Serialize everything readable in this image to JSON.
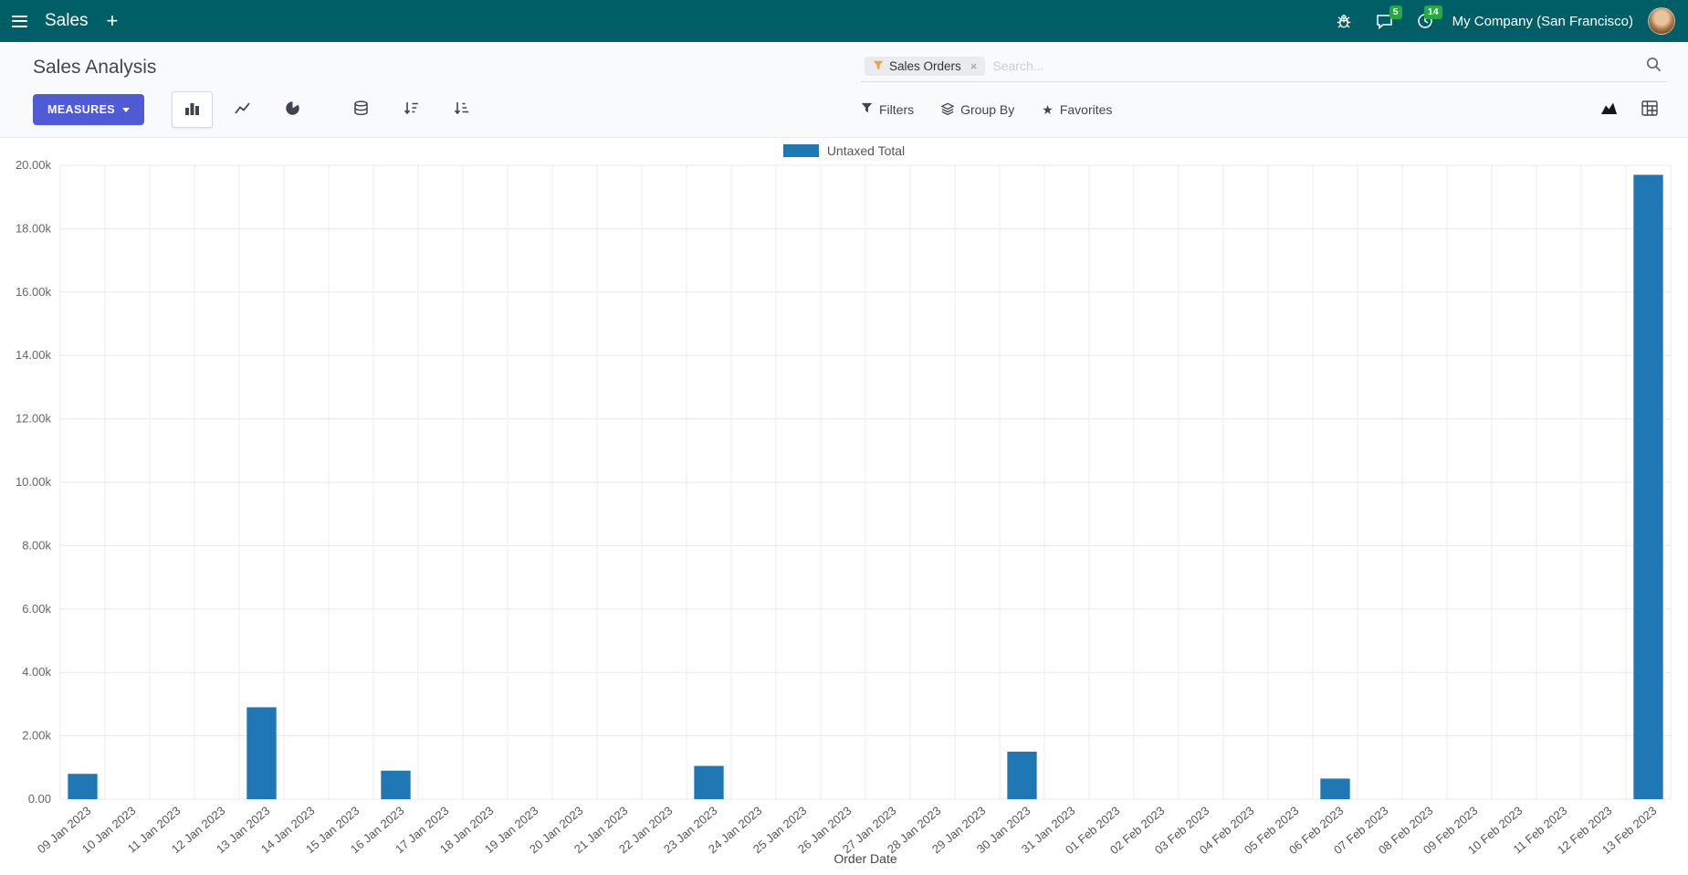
{
  "navbar": {
    "app_title": "Sales",
    "new_label": "+",
    "company": "My Company (San Francisco)",
    "messages_badge": "5",
    "activities_badge": "14"
  },
  "control_panel": {
    "title": "Sales Analysis",
    "measures_label": "MEASURES",
    "filters_label": "Filters",
    "group_by_label": "Group By",
    "favorites_label": "Favorites"
  },
  "search": {
    "facet_label": "Sales Orders",
    "remove_label": "×",
    "placeholder": "Search..."
  },
  "icons": {
    "star": "★"
  },
  "colors": {
    "navbar_bg": "#005E66",
    "primary": "#4F5BD5",
    "bar": "#1F77B4",
    "badge": "#28A745",
    "funnel": "#E8A33D"
  },
  "chart_data": {
    "type": "bar",
    "title": "Sales Analysis",
    "legend_position": "top",
    "grid": true,
    "xlabel": "Order Date",
    "ylabel": "",
    "ylim": [
      0,
      20000
    ],
    "y_tick_step": 2000,
    "y_tick_labels": [
      "0.00",
      "2.00k",
      "4.00k",
      "6.00k",
      "8.00k",
      "10.00k",
      "12.00k",
      "14.00k",
      "16.00k",
      "18.00k",
      "20.00k"
    ],
    "categories": [
      "09 Jan 2023",
      "10 Jan 2023",
      "11 Jan 2023",
      "12 Jan 2023",
      "13 Jan 2023",
      "14 Jan 2023",
      "15 Jan 2023",
      "16 Jan 2023",
      "17 Jan 2023",
      "18 Jan 2023",
      "19 Jan 2023",
      "20 Jan 2023",
      "21 Jan 2023",
      "22 Jan 2023",
      "23 Jan 2023",
      "24 Jan 2023",
      "25 Jan 2023",
      "26 Jan 2023",
      "27 Jan 2023",
      "28 Jan 2023",
      "29 Jan 2023",
      "30 Jan 2023",
      "31 Jan 2023",
      "01 Feb 2023",
      "02 Feb 2023",
      "03 Feb 2023",
      "04 Feb 2023",
      "05 Feb 2023",
      "06 Feb 2023",
      "07 Feb 2023",
      "08 Feb 2023",
      "09 Feb 2023",
      "10 Feb 2023",
      "11 Feb 2023",
      "12 Feb 2023",
      "13 Feb 2023"
    ],
    "series": [
      {
        "name": "Untaxed Total",
        "values": [
          800,
          0,
          0,
          0,
          2900,
          0,
          0,
          900,
          0,
          0,
          0,
          0,
          0,
          0,
          1050,
          0,
          0,
          0,
          0,
          0,
          0,
          1500,
          0,
          0,
          0,
          0,
          0,
          0,
          650,
          0,
          0,
          0,
          0,
          0,
          0,
          19700
        ]
      }
    ]
  }
}
